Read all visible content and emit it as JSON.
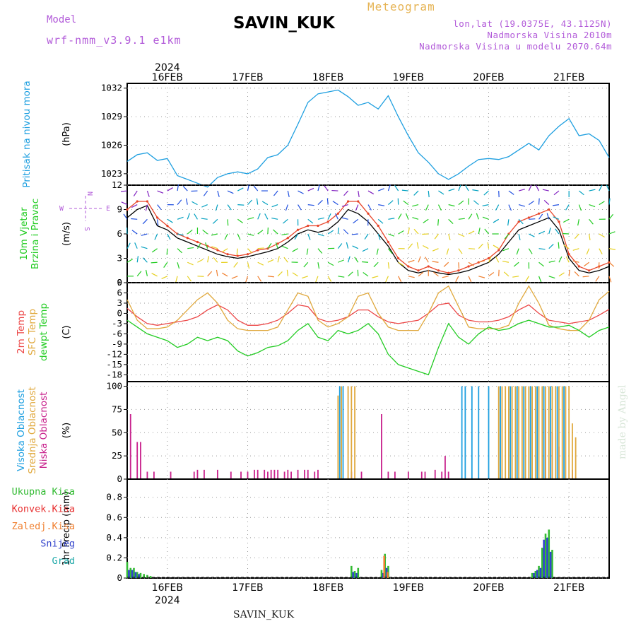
{
  "header": {
    "model_label": "Model",
    "model_name": "wrf-nmm_v3.9.1 e1km",
    "station": "SAVIN_KUK",
    "meteogram_label": "Meteogram",
    "lonlat": "lon,lat (19.0375E, 43.1125N)",
    "altitude": "Nadmorska Visina 2010m",
    "altitude_model": "Nadmorska Visina u modelu 2070.64m"
  },
  "footer": {
    "station": "SAVIN_KUK",
    "credit": "made by Angel"
  },
  "colors": {
    "pressure": "#1e9fe0",
    "wind_speed": "#000000",
    "gust": "#e8452a",
    "temp_2m": "#ec4646",
    "temp_sfc": "#e0a83c",
    "dewpoint": "#22cc22",
    "cloud_high": "#1e9fe0",
    "cloud_mid": "#e0a83c",
    "cloud_low": "#c8208c",
    "precip_total": "#33bb33",
    "precip_conv": "#e83030",
    "precip_frz": "#f08030",
    "precip_snow": "#3344cc",
    "precip_graupel": "#22aaaa"
  },
  "time_axis": {
    "year": "2024",
    "start_hour": 0,
    "end_hour": 144,
    "ticks": [
      {
        "hour": 12,
        "label": "16FEB"
      },
      {
        "hour": 36,
        "label": "17FEB"
      },
      {
        "hour": 60,
        "label": "18FEB"
      },
      {
        "hour": 84,
        "label": "19FEB"
      },
      {
        "hour": 108,
        "label": "20FEB"
      },
      {
        "hour": 132,
        "label": "21FEB"
      }
    ]
  },
  "chart_data": [
    {
      "type": "line",
      "id": "pressure",
      "title": "Pritisak na nivou mora",
      "ylabel": "(hPa)",
      "ylim": [
        1021.8,
        1032.5
      ],
      "yticks": [
        1023,
        1026,
        1029,
        1032
      ],
      "grid": true,
      "series": [
        {
          "key": "pressure",
          "color_key": "pressure",
          "x": [
            0,
            3,
            6,
            9,
            12,
            15,
            18,
            21,
            24,
            27,
            30,
            33,
            36,
            39,
            42,
            45,
            48,
            51,
            54,
            57,
            60,
            63,
            66,
            69,
            72,
            75,
            78,
            81,
            84,
            87,
            90,
            93,
            96,
            99,
            102,
            105,
            108,
            111,
            114,
            117,
            120,
            123,
            126,
            129,
            132,
            135,
            138,
            141,
            144
          ],
          "values": [
            1024.3,
            1025.0,
            1025.2,
            1024.4,
            1024.6,
            1022.8,
            1022.4,
            1022.0,
            1021.6,
            1022.6,
            1023.0,
            1023.2,
            1023.0,
            1023.5,
            1024.7,
            1025.0,
            1026.0,
            1028.2,
            1030.5,
            1031.4,
            1031.6,
            1031.8,
            1031.1,
            1030.2,
            1030.5,
            1029.8,
            1031.2,
            1029.0,
            1027.0,
            1025.2,
            1024.2,
            1023.0,
            1022.4,
            1023.0,
            1023.8,
            1024.5,
            1024.6,
            1024.5,
            1024.8,
            1025.5,
            1026.2,
            1025.5,
            1027.0,
            1028.0,
            1028.8,
            1027.0,
            1027.2,
            1026.5,
            1024.7
          ]
        }
      ]
    },
    {
      "type": "line",
      "id": "wind",
      "title": "10m Vjetar Brzina i Pravac",
      "ylabel": "(m/s)",
      "ylim": [
        0,
        12
      ],
      "yticks": [
        0,
        3,
        6,
        9,
        12
      ],
      "grid": true,
      "compass": {
        "n": "N",
        "s": "S",
        "w": "W",
        "e": "E"
      },
      "series": [
        {
          "key": "speed",
          "color_key": "wind_speed",
          "x": [
            0,
            3,
            6,
            9,
            12,
            15,
            18,
            21,
            24,
            27,
            30,
            33,
            36,
            39,
            42,
            45,
            48,
            51,
            54,
            57,
            60,
            63,
            66,
            69,
            72,
            75,
            78,
            81,
            84,
            87,
            90,
            93,
            96,
            99,
            102,
            105,
            108,
            111,
            114,
            117,
            120,
            123,
            126,
            129,
            132,
            135,
            138,
            141,
            144
          ],
          "values": [
            8,
            9,
            9.5,
            7,
            6.5,
            5.5,
            5,
            4.5,
            4,
            3.5,
            3.2,
            3,
            3.2,
            3.5,
            3.8,
            4.2,
            5,
            6,
            6.5,
            6.2,
            6.5,
            7.5,
            9,
            8.5,
            7.5,
            6,
            4.5,
            2.5,
            1.5,
            1.2,
            1.5,
            1.2,
            1,
            1.2,
            1.5,
            2,
            2.5,
            3.5,
            5,
            6.5,
            7,
            7.5,
            8,
            6.5,
            3,
            1.5,
            1.2,
            1.5,
            2
          ]
        },
        {
          "key": "gust",
          "color_key": "gust",
          "x": [
            0,
            3,
            6,
            9,
            12,
            15,
            18,
            21,
            24,
            27,
            30,
            33,
            36,
            39,
            42,
            45,
            48,
            51,
            54,
            57,
            60,
            63,
            66,
            69,
            72,
            75,
            78,
            81,
            84,
            87,
            90,
            93,
            96,
            99,
            102,
            105,
            108,
            111,
            114,
            117,
            120,
            123,
            126,
            129,
            132,
            135,
            138,
            141,
            144
          ],
          "values": [
            9,
            10,
            10,
            8,
            7,
            6,
            5.5,
            5,
            4.5,
            4,
            3.5,
            3.3,
            3.5,
            4,
            4.2,
            4.8,
            5.5,
            6.5,
            7,
            7,
            7.5,
            8.5,
            10,
            10,
            8.5,
            7,
            5,
            3,
            2,
            1.5,
            2,
            1.5,
            1.2,
            1.5,
            2,
            2.5,
            3,
            4,
            6,
            7.5,
            8,
            8.5,
            9,
            7.5,
            3.5,
            2,
            1.5,
            2,
            2.5
          ]
        }
      ],
      "barb_colors": [
        "#e8234a",
        "#f08030",
        "#e6d020",
        "#22cc22",
        "#00a0c0",
        "#2050e0",
        "#8020c0"
      ]
    },
    {
      "type": "line",
      "id": "temperature",
      "title": "2m Temp SFC Temp dewpt Temp",
      "ylabel": "(C)",
      "ylim": [
        -20,
        9
      ],
      "yticks": [
        -18,
        -15,
        -12,
        -9,
        -6,
        -3,
        0,
        3,
        6,
        9
      ],
      "grid": true,
      "series": [
        {
          "key": "2m",
          "name": "2m Temp",
          "color_key": "temp_2m",
          "x": [
            0,
            3,
            6,
            9,
            12,
            15,
            18,
            21,
            24,
            27,
            30,
            33,
            36,
            39,
            42,
            45,
            48,
            51,
            54,
            57,
            60,
            63,
            66,
            69,
            72,
            75,
            78,
            81,
            84,
            87,
            90,
            93,
            96,
            99,
            102,
            105,
            108,
            111,
            114,
            117,
            120,
            123,
            126,
            129,
            132,
            135,
            138,
            141,
            144
          ],
          "values": [
            1.5,
            -1,
            -3,
            -3.5,
            -3,
            -2.5,
            -2,
            -1,
            1,
            2.5,
            1,
            -2,
            -3.5,
            -3.5,
            -3,
            -2,
            0,
            2.5,
            2,
            -1.5,
            -2.5,
            -2,
            -1,
            1,
            1,
            -1,
            -2.5,
            -3,
            -2.5,
            -2,
            0,
            2.5,
            3,
            -0.5,
            -2,
            -2.5,
            -2.5,
            -2,
            -1,
            1,
            2.5,
            0,
            -2,
            -2.5,
            -3,
            -2.5,
            -2,
            -0.5,
            1.2
          ]
        },
        {
          "key": "sfc",
          "name": "SFC Temp",
          "color_key": "temp_sfc",
          "x": [
            0,
            3,
            6,
            9,
            12,
            15,
            18,
            21,
            24,
            27,
            30,
            33,
            36,
            39,
            42,
            45,
            48,
            51,
            54,
            57,
            60,
            63,
            66,
            69,
            72,
            75,
            78,
            81,
            84,
            87,
            90,
            93,
            96,
            99,
            102,
            105,
            108,
            111,
            114,
            117,
            120,
            123,
            126,
            129,
            132,
            135,
            138,
            141,
            144
          ],
          "values": [
            4,
            -2,
            -4.5,
            -4.5,
            -4,
            -2,
            1,
            4,
            6,
            3,
            -2,
            -4.5,
            -5,
            -5,
            -5,
            -4,
            1,
            6,
            5,
            -2,
            -4,
            -3,
            -1,
            5,
            6,
            0,
            -4,
            -5,
            -5,
            -5,
            0,
            6,
            8,
            2,
            -4,
            -4.5,
            -4.5,
            -4.5,
            -3.5,
            3,
            8,
            3,
            -3.5,
            -4.5,
            -5,
            -5,
            -2,
            4,
            6.5
          ]
        },
        {
          "key": "dewpt",
          "name": "dewpt Temp",
          "color_key": "dewpoint",
          "x": [
            0,
            3,
            6,
            9,
            12,
            15,
            18,
            21,
            24,
            27,
            30,
            33,
            36,
            39,
            42,
            45,
            48,
            51,
            54,
            57,
            60,
            63,
            66,
            69,
            72,
            75,
            78,
            81,
            84,
            87,
            90,
            93,
            96,
            99,
            102,
            105,
            108,
            111,
            114,
            117,
            120,
            123,
            126,
            129,
            132,
            135,
            138,
            141,
            144
          ],
          "values": [
            -2,
            -4,
            -6,
            -7,
            -8,
            -10,
            -9,
            -7,
            -8,
            -7,
            -8,
            -11,
            -12.5,
            -11.5,
            -10,
            -9.5,
            -8,
            -5,
            -3,
            -7,
            -8,
            -5,
            -6,
            -5,
            -3,
            -6,
            -12,
            -15,
            -16,
            -17,
            -18,
            -10,
            -3,
            -7,
            -9,
            -6,
            -4,
            -5,
            -4.5,
            -3,
            -2,
            -3,
            -4,
            -4,
            -3.5,
            -5,
            -7,
            -5,
            -4
          ]
        }
      ]
    },
    {
      "type": "bar",
      "id": "clouds",
      "title": "Visoka Oblacnost Srednja Oblacnost Niska Oblacnost",
      "ylabel": "(%)",
      "ylim": [
        0,
        105
      ],
      "yticks": [
        0,
        25,
        50,
        75,
        100
      ],
      "grid": true,
      "series": [
        {
          "key": "low",
          "name": "Niska Oblacnost",
          "color_key": "cloud_low",
          "x": [
            1,
            3,
            4,
            6,
            8,
            13,
            20,
            21,
            23,
            27,
            31,
            34,
            36,
            38,
            39,
            41,
            42,
            43,
            44,
            45,
            47,
            48,
            49,
            51,
            53,
            54,
            56,
            57,
            67,
            70,
            76,
            78,
            80,
            84,
            88,
            89,
            92,
            94,
            95,
            96,
            125,
            127,
            129,
            133
          ],
          "values": [
            70,
            40,
            40,
            8,
            8,
            8,
            8,
            10,
            10,
            10,
            8,
            8,
            8,
            10,
            10,
            10,
            8,
            10,
            10,
            10,
            8,
            10,
            8,
            10,
            10,
            10,
            8,
            10,
            8,
            8,
            70,
            8,
            8,
            8,
            8,
            8,
            10,
            8,
            25,
            8,
            75,
            50,
            35,
            10
          ]
        },
        {
          "key": "mid",
          "name": "Srednja Oblacnost",
          "color_key": "cloud_mid",
          "x": [
            63,
            64,
            66,
            67,
            68,
            111,
            112,
            113,
            114,
            115,
            116,
            117,
            118,
            119,
            120,
            121,
            122,
            123,
            124,
            125,
            126,
            127,
            128,
            129,
            130,
            131,
            132,
            133,
            134
          ],
          "values": [
            90,
            100,
            100,
            100,
            100,
            100,
            100,
            100,
            100,
            100,
            100,
            100,
            100,
            100,
            100,
            100,
            100,
            100,
            100,
            100,
            100,
            100,
            100,
            100,
            100,
            100,
            100,
            60,
            45
          ]
        },
        {
          "key": "high",
          "name": "Visoka Oblacnost",
          "color_key": "cloud_high",
          "x": [
            63.5,
            64.5,
            100,
            101,
            103,
            105,
            108,
            111.5,
            114.5,
            116.5,
            118.5,
            120.5,
            122.5,
            124.5,
            126.5,
            128.5,
            130.5
          ],
          "values": [
            100,
            100,
            100,
            100,
            100,
            100,
            100,
            100,
            100,
            100,
            100,
            100,
            100,
            100,
            100,
            100,
            100
          ]
        }
      ]
    },
    {
      "type": "bar",
      "id": "precip",
      "title": "1hr Precip",
      "ylabel": "1hr Precip (mm)",
      "ylim": [
        0,
        0.98
      ],
      "yticks": [
        0,
        0.2,
        0.4,
        0.6,
        0.8
      ],
      "grid": true,
      "legend": [
        "Ukupna Kisa",
        "Konvek.Kisa",
        "Zaledj.Kisa",
        "Snijeg",
        "Grad"
      ],
      "series": [
        {
          "key": "total",
          "name": "Ukupna Kisa",
          "color_key": "precip_total",
          "x": [
            0,
            1,
            2,
            3,
            4,
            5,
            6,
            7,
            67,
            68,
            69,
            76,
            77,
            78,
            121,
            122,
            123,
            124,
            125,
            126,
            127
          ],
          "values": [
            0.16,
            0.1,
            0.1,
            0.06,
            0.05,
            0.04,
            0.03,
            0.02,
            0.12,
            0.07,
            0.1,
            0.08,
            0.24,
            0.12,
            0.05,
            0.07,
            0.12,
            0.3,
            0.44,
            0.48,
            0.28
          ]
        },
        {
          "key": "snow",
          "name": "Snijeg",
          "color_key": "precip_snow",
          "x": [
            0.5,
            1.5,
            2.5,
            3.5,
            67.5,
            68.5,
            76.5,
            77.5,
            121.5,
            122.5,
            123.5,
            124.5,
            125.5,
            126.5
          ],
          "values": [
            0.08,
            0.08,
            0.06,
            0.04,
            0.06,
            0.05,
            0.05,
            0.1,
            0.05,
            0.08,
            0.1,
            0.38,
            0.4,
            0.26
          ]
        },
        {
          "key": "frz",
          "name": "Zaledj.Kisa",
          "color_key": "precip_frz",
          "x": [
            76.8,
            77.8
          ],
          "values": [
            0.22,
            0.06
          ]
        },
        {
          "key": "conv",
          "name": "Konvek.Kisa",
          "color_key": "precip_conv",
          "x": [],
          "values": []
        },
        {
          "key": "graupel",
          "name": "Grad",
          "color_key": "precip_graupel",
          "x": [],
          "values": []
        }
      ]
    }
  ]
}
